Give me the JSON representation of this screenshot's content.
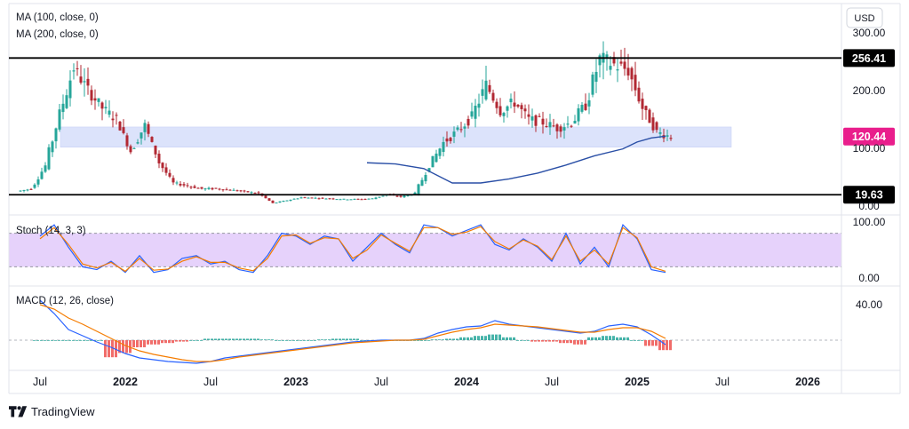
{
  "currency_label": "USD",
  "brand": {
    "name": "TradingView"
  },
  "price_pane": {
    "indicator_labels": [
      "MA (100, close, 0)",
      "MA (200, close, 0)"
    ],
    "axis_ticks": [
      "300.00",
      "200.00",
      "100.00",
      "0.00"
    ],
    "levels": [
      {
        "value": 256.41,
        "label": "256.41",
        "color": "#000000"
      },
      {
        "value": 19.63,
        "label": "19.63",
        "color": "#000000"
      }
    ],
    "current_price": {
      "value": 120.44,
      "label": "120.44",
      "color": "#e91e8c"
    },
    "support_zone": [
      102,
      137
    ]
  },
  "stoch_pane": {
    "label": "Stoch (14, 3, 3)",
    "axis_ticks": [
      "100.00",
      "0.00"
    ],
    "overbought": 80,
    "oversold": 20
  },
  "macd_pane": {
    "label": "MACD (12, 26, close)",
    "axis_ticks": [
      "40.00"
    ]
  },
  "time_axis": {
    "labels": [
      "Jul",
      "2022",
      "Jul",
      "2023",
      "Jul",
      "2024",
      "Jul",
      "2025",
      "Jul",
      "2026"
    ],
    "bold": [
      "2022",
      "2023",
      "2024",
      "2025",
      "2026"
    ]
  },
  "colors": {
    "up": "#26a69a",
    "down": "#b22833",
    "ma": "#2a4fa6",
    "stoch_k": "#2962ff",
    "stoch_d": "#f57c00",
    "zone": "#dce3fb",
    "stoch_band": "#e6d2fb"
  },
  "chart_data": [
    {
      "type": "candlestick",
      "title": "",
      "ylim": [
        0,
        300
      ],
      "x": [
        "2021-06",
        "2021-07",
        "2021-08",
        "2021-09",
        "2021-10",
        "2021-11",
        "2021-12",
        "2022-01",
        "2022-02",
        "2022-03",
        "2022-04",
        "2022-05",
        "2022-06",
        "2022-07",
        "2022-08",
        "2022-09",
        "2022-10",
        "2022-11",
        "2022-12",
        "2023-01",
        "2023-02",
        "2023-03",
        "2023-04",
        "2023-05",
        "2023-06",
        "2023-07",
        "2023-08",
        "2023-09",
        "2023-10",
        "2023-11",
        "2023-12",
        "2024-01",
        "2024-02",
        "2024-03",
        "2024-04",
        "2024-05",
        "2024-06",
        "2024-07",
        "2024-08",
        "2024-09",
        "2024-10",
        "2024-11",
        "2024-12",
        "2025-01",
        "2025-02",
        "2025-03"
      ],
      "close": [
        30,
        70,
        160,
        240,
        200,
        170,
        150,
        95,
        140,
        75,
        40,
        35,
        30,
        30,
        28,
        25,
        22,
        5,
        10,
        15,
        14,
        13,
        12,
        12,
        13,
        20,
        16,
        22,
        70,
        110,
        130,
        155,
        210,
        165,
        180,
        150,
        145,
        135,
        145,
        175,
        255,
        245,
        235,
        170,
        128,
        120
      ],
      "series": [
        {
          "name": "MA (100, close, 0)",
          "x": [
            "2023-06",
            "2023-08",
            "2023-10",
            "2023-12",
            "2024-02",
            "2024-04",
            "2024-06",
            "2024-08",
            "2024-10",
            "2024-12",
            "2025-01",
            "2025-02",
            "2025-03"
          ],
          "values": [
            75,
            73,
            65,
            40,
            40,
            47,
            57,
            71,
            87,
            99,
            111,
            118,
            121
          ]
        }
      ]
    },
    {
      "type": "line",
      "title": "Stoch (14, 3, 3)",
      "ylim": [
        0,
        100
      ],
      "x": [
        "2021-07",
        "2021-08",
        "2021-09",
        "2021-10",
        "2021-11",
        "2021-12",
        "2022-01",
        "2022-02",
        "2022-03",
        "2022-04",
        "2022-05",
        "2022-06",
        "2022-07",
        "2022-08",
        "2022-09",
        "2022-10",
        "2022-11",
        "2022-12",
        "2023-01",
        "2023-02",
        "2023-03",
        "2023-04",
        "2023-05",
        "2023-06",
        "2023-07",
        "2023-08",
        "2023-09",
        "2023-10",
        "2023-11",
        "2023-12",
        "2024-01",
        "2024-02",
        "2024-03",
        "2024-04",
        "2024-05",
        "2024-06",
        "2024-07",
        "2024-08",
        "2024-09",
        "2024-10",
        "2024-11",
        "2024-12",
        "2025-01",
        "2025-02",
        "2025-03"
      ],
      "series": [
        {
          "name": "%K",
          "values": [
            75,
            95,
            55,
            20,
            15,
            30,
            10,
            40,
            10,
            15,
            35,
            40,
            25,
            30,
            15,
            10,
            40,
            80,
            75,
            60,
            75,
            70,
            30,
            55,
            80,
            60,
            45,
            95,
            90,
            75,
            85,
            95,
            60,
            50,
            70,
            55,
            30,
            80,
            25,
            55,
            20,
            95,
            70,
            15,
            10
          ]
        },
        {
          "name": "%D",
          "values": [
            70,
            90,
            60,
            25,
            18,
            28,
            12,
            35,
            14,
            16,
            30,
            38,
            28,
            28,
            18,
            13,
            35,
            75,
            77,
            62,
            72,
            70,
            35,
            50,
            77,
            62,
            48,
            90,
            90,
            78,
            82,
            92,
            65,
            52,
            68,
            57,
            33,
            75,
            30,
            50,
            25,
            90,
            72,
            20,
            12
          ]
        }
      ]
    },
    {
      "type": "bar",
      "title": "MACD (12, 26, close)",
      "x": [
        "2021-07",
        "2021-08",
        "2021-09",
        "2021-10",
        "2021-11",
        "2021-12",
        "2022-01",
        "2022-02",
        "2022-03",
        "2022-04",
        "2022-05",
        "2022-06",
        "2022-07",
        "2022-08",
        "2022-09",
        "2022-10",
        "2022-11",
        "2022-12",
        "2023-01",
        "2023-02",
        "2023-03",
        "2023-04",
        "2023-05",
        "2023-06",
        "2023-07",
        "2023-08",
        "2023-09",
        "2023-10",
        "2023-11",
        "2023-12",
        "2024-01",
        "2024-02",
        "2024-03",
        "2024-04",
        "2024-05",
        "2024-06",
        "2024-07",
        "2024-08",
        "2024-09",
        "2024-10",
        "2024-11",
        "2024-12",
        "2025-01",
        "2025-02",
        "2025-03"
      ],
      "values": [
        0,
        0,
        0,
        0,
        0,
        -12,
        -9,
        -5,
        -3,
        -2,
        -1,
        0,
        1,
        1,
        1,
        1,
        0.5,
        0,
        0,
        0,
        0.5,
        1,
        1,
        0,
        0,
        0,
        0,
        0,
        0.5,
        1,
        2,
        3,
        4,
        2,
        0,
        -1,
        -1,
        -2,
        -3,
        2,
        3,
        2,
        0,
        -4,
        -7
      ],
      "series": [
        {
          "name": "MACD",
          "values": [
            45,
            30,
            12,
            5,
            -2,
            -8,
            -15,
            -20,
            -22,
            -24,
            -25,
            -26,
            -24,
            -20,
            -18,
            -16,
            -14,
            -12,
            -10,
            -8,
            -6,
            -4,
            -2,
            -1,
            0,
            0,
            0,
            2,
            8,
            12,
            15,
            16,
            22,
            18,
            16,
            14,
            12,
            10,
            8,
            10,
            16,
            18,
            15,
            6,
            -5
          ]
        },
        {
          "name": "Signal",
          "values": [
            40,
            35,
            25,
            18,
            10,
            2,
            -6,
            -12,
            -16,
            -19,
            -22,
            -24,
            -24,
            -22,
            -19,
            -17,
            -15,
            -13,
            -11,
            -9,
            -7,
            -5,
            -3,
            -2,
            -1,
            0,
            0,
            1,
            5,
            9,
            12,
            14,
            18,
            17,
            16,
            15,
            13,
            11,
            9,
            9,
            12,
            14,
            14,
            10,
            2
          ]
        }
      ]
    }
  ]
}
